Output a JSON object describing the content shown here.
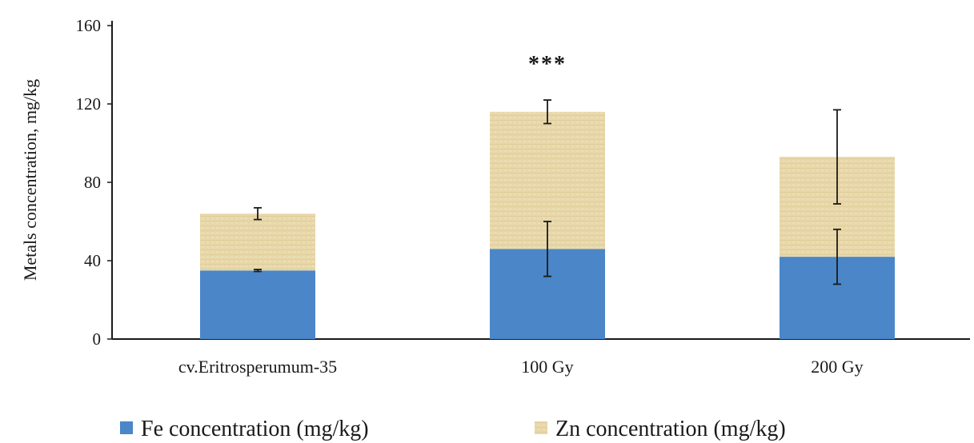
{
  "chart_data": {
    "type": "bar",
    "stacked": true,
    "title": "",
    "xlabel": "",
    "ylabel": "Metals concentration, mg/kg",
    "ylim": [
      0,
      160
    ],
    "yticks": [
      0,
      40,
      80,
      120,
      160
    ],
    "grid": false,
    "legend_position": "bottom",
    "categories": [
      "cv.Eritrosperumum-35",
      "100 Gy",
      "200 Gy"
    ],
    "series": [
      {
        "name": "Fe concentration (mg/kg)",
        "color": "#4a86c8",
        "values": [
          35,
          46,
          42
        ],
        "errors": [
          0.5,
          14,
          14
        ]
      },
      {
        "name": "Zn  concentration (mg/kg)",
        "color": "#e8d7a9",
        "values": [
          29,
          70,
          51
        ],
        "errors": [
          3,
          6,
          24
        ]
      }
    ],
    "annotations": [
      {
        "category": "100 Gy",
        "text": "***",
        "y": 140
      }
    ]
  }
}
